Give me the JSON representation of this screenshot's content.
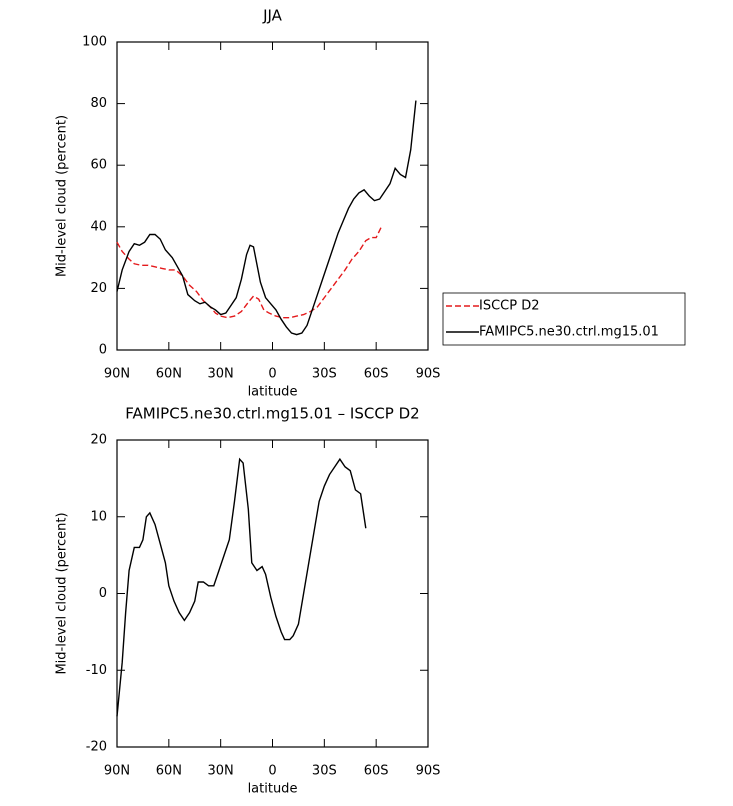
{
  "chart_data": [
    {
      "type": "line",
      "title": "JJA",
      "xlabel": "latitude",
      "ylabel": "Mid-level cloud (percent)",
      "xlim": [
        90,
        -90
      ],
      "ylim": [
        0,
        100
      ],
      "xticks": [
        {
          "value": 90,
          "label": "90N"
        },
        {
          "value": 60,
          "label": "60N"
        },
        {
          "value": 30,
          "label": "30N"
        },
        0,
        {
          "value": -30,
          "label": "30S"
        },
        {
          "value": -60,
          "label": "60S"
        },
        {
          "value": -90,
          "label": "90S"
        }
      ],
      "yticks": [
        0,
        20,
        40,
        60,
        80,
        100
      ],
      "legend": "right",
      "series": [
        {
          "name": "ISCCP D2",
          "color": "#e41a1c",
          "linestyle": "dashed",
          "x": [
            90,
            87,
            83,
            80,
            76,
            72,
            68,
            64,
            60,
            56,
            52,
            48,
            44,
            40,
            36,
            33,
            30,
            26,
            22,
            18,
            14,
            11,
            8,
            5,
            2,
            -2,
            -6,
            -10,
            -14,
            -18,
            -22,
            -26,
            -30,
            -34,
            -38,
            -42,
            -46,
            -50,
            -54,
            -57,
            -60,
            -63
          ],
          "values": [
            35,
            32,
            29.5,
            28,
            27.5,
            27.5,
            27,
            26.5,
            26,
            26,
            24,
            21,
            19,
            16,
            14,
            12,
            11,
            10.5,
            11,
            12.5,
            15.5,
            17.5,
            16.5,
            13,
            12,
            11,
            10.5,
            10.5,
            11,
            11.5,
            12.5,
            14,
            17,
            20,
            23,
            26,
            29.5,
            32,
            35.5,
            36.5,
            36.5,
            40
          ]
        },
        {
          "name": "FAMIPC5.ne30.ctrl.mg15.01",
          "color": "#000000",
          "linestyle": "solid",
          "x": [
            90,
            87,
            83,
            80,
            77,
            74,
            71,
            68,
            65,
            62,
            58,
            55,
            52,
            49,
            45,
            42,
            39,
            36,
            33,
            30,
            27,
            24,
            21,
            18,
            15,
            13,
            11,
            7,
            4,
            1,
            -2,
            -5,
            -8,
            -11,
            -14,
            -17,
            -20,
            -23,
            -26,
            -29,
            -32,
            -35,
            -38,
            -41,
            -44,
            -47,
            -50,
            -53,
            -56,
            -59,
            -62,
            -65,
            -68,
            -71,
            -74,
            -77,
            -80,
            -83
          ],
          "values": [
            19,
            26,
            32,
            34.5,
            34,
            35,
            37.5,
            37.5,
            36,
            32.5,
            30,
            27,
            24,
            18,
            16,
            15,
            15.5,
            14,
            13,
            11.5,
            12,
            14.5,
            17,
            23,
            31,
            34,
            33.5,
            22,
            17,
            15,
            13,
            10,
            7.5,
            5.5,
            5,
            5.5,
            8,
            13,
            18,
            23,
            28,
            33,
            38,
            42,
            46,
            49,
            51,
            52,
            50,
            48.5,
            49,
            51.5,
            54,
            59,
            57,
            56,
            65,
            81
          ]
        }
      ]
    },
    {
      "type": "line",
      "title": "FAMIPC5.ne30.ctrl.mg15.01 – ISCCP D2",
      "xlabel": "latitude",
      "ylabel": "Mid-level cloud (percent)",
      "xlim": [
        90,
        -90
      ],
      "ylim": [
        -20,
        20
      ],
      "xticks": [
        {
          "value": 90,
          "label": "90N"
        },
        {
          "value": 60,
          "label": "60N"
        },
        {
          "value": 30,
          "label": "30N"
        },
        0,
        {
          "value": -30,
          "label": "30S"
        },
        {
          "value": -60,
          "label": "60S"
        },
        {
          "value": -90,
          "label": "90S"
        }
      ],
      "yticks": [
        -20,
        -10,
        0,
        10,
        20
      ],
      "series": [
        {
          "color": "#000000",
          "linestyle": "solid",
          "x": [
            90,
            87,
            85,
            83,
            80,
            77,
            75,
            73,
            71,
            68,
            65,
            62,
            60,
            57,
            54,
            51,
            48,
            45,
            43,
            40,
            37,
            34,
            31,
            28,
            25,
            22,
            19,
            17,
            14,
            12,
            9,
            6,
            4,
            1,
            -2,
            -5,
            -7,
            -10,
            -12,
            -15,
            -18,
            -21,
            -24,
            -27,
            -30,
            -33,
            -36,
            -39,
            -42,
            -45,
            -48,
            -51,
            -54
          ],
          "values": [
            -16,
            -9,
            -2.5,
            3,
            6,
            6,
            7,
            10,
            10.5,
            9,
            6.5,
            4,
            1,
            -1,
            -2.5,
            -3.5,
            -2.5,
            -1,
            1.5,
            1.5,
            1,
            1,
            3,
            5,
            7,
            12,
            17.5,
            17,
            11,
            4,
            3,
            3.5,
            2.5,
            -0.5,
            -3,
            -5,
            -6,
            -6,
            -5.5,
            -4,
            0,
            4,
            8,
            12,
            14,
            15.5,
            16.5,
            17.5,
            16.5,
            16,
            13.5,
            13,
            8.5
          ]
        }
      ]
    }
  ]
}
